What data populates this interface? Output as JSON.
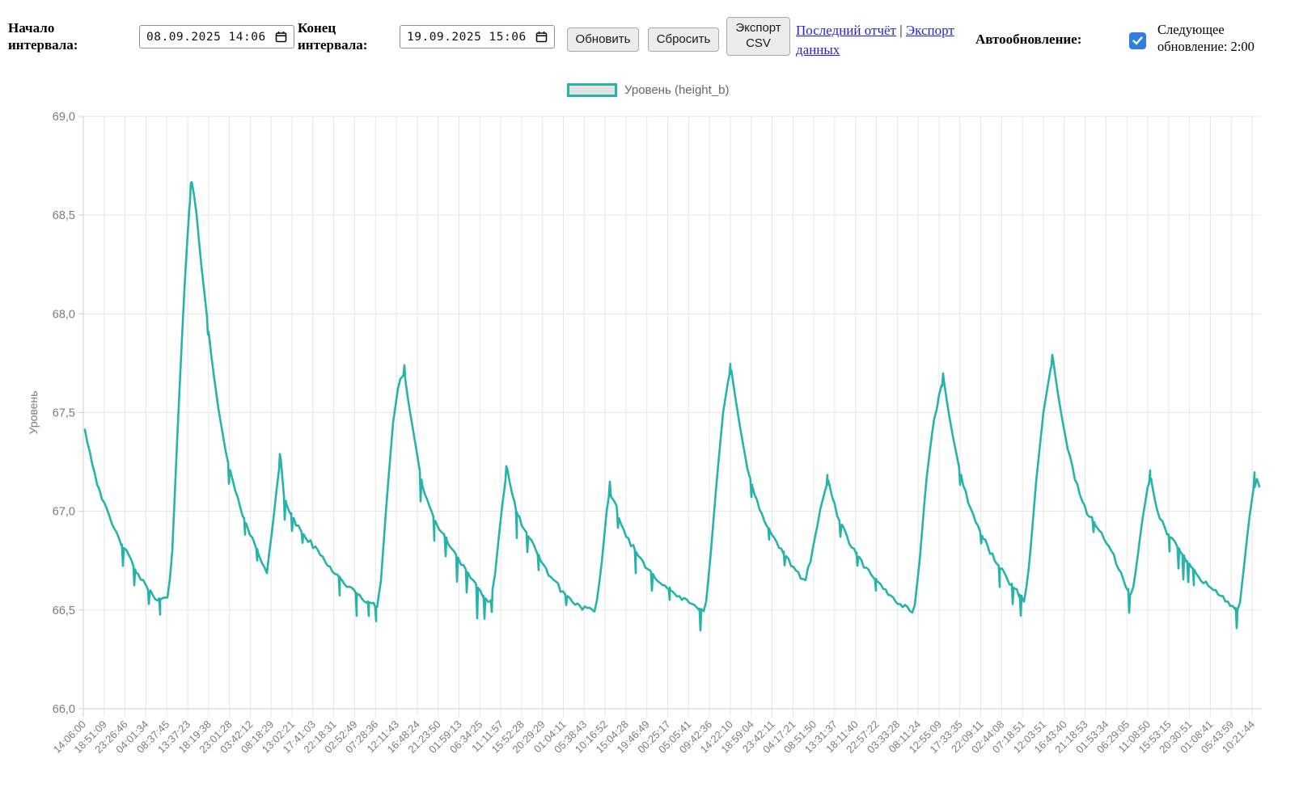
{
  "toolbar": {
    "start_label": "Начало интервала:",
    "start_value": "08.09.2025 14:06",
    "end_label": "Конец интервала:",
    "end_value": "19.09.2025 15:06",
    "refresh_button": "Обновить",
    "reset_button": "Сбросить",
    "export_csv_button": "Экспорт CSV",
    "last_report_link": "Последний отчёт",
    "links_separator": "|",
    "export_data_link": "Экспорт данных",
    "autorefresh_label": "Автообновление:",
    "autorefresh_checked": true,
    "next_update_text": "Следующее обновление: 2:00"
  },
  "colors": {
    "series": "#26b3aa",
    "grid": "#e6e6e6",
    "axis": "#cfcfcf",
    "tick_text": "#7b7b7b",
    "legend_text": "#666666",
    "link": "#2525cf",
    "checkbox": "#2e7fe0"
  },
  "chart_data": {
    "type": "line",
    "legend_label": "Уровень (height_b)",
    "ylabel": "Уровень",
    "ylim": [
      66.0,
      69.0
    ],
    "ytick_step": 0.5,
    "grid": true,
    "legend_position": "top",
    "y_ticks": [
      {
        "value": 69.0,
        "label": "69,0"
      },
      {
        "value": 68.5,
        "label": "68,5"
      },
      {
        "value": 68.0,
        "label": "68,0"
      },
      {
        "value": 67.5,
        "label": "67,5"
      },
      {
        "value": 67.0,
        "label": "67,0"
      },
      {
        "value": 66.5,
        "label": "66,5"
      },
      {
        "value": 66.0,
        "label": "66,0"
      }
    ],
    "x_tick_labels": [
      "14:06:00",
      "18:51:09",
      "23:26:46",
      "04:01:34",
      "08:37:45",
      "13:37:23",
      "18:19:38",
      "23:01:28",
      "03:42:12",
      "08:18:29",
      "13:02:21",
      "17:41:03",
      "22:18:31",
      "02:52:49",
      "07:28:36",
      "12:11:43",
      "16:48:24",
      "21:23:50",
      "01:59:13",
      "06:34:25",
      "11:11:57",
      "15:52:28",
      "20:29:29",
      "01:04:11",
      "05:38:43",
      "10:16:52",
      "15:04:28",
      "19:46:49",
      "00:25:17",
      "05:05:41",
      "09:42:36",
      "14:22:10",
      "18:59:04",
      "23:42:11",
      "04:17:21",
      "08:51:50",
      "13:31:37",
      "18:11:40",
      "22:57:22",
      "03:33:28",
      "08:11:24",
      "12:55:09",
      "17:33:35",
      "22:09:11",
      "02:44:08",
      "07:18:51",
      "12:03:51",
      "16:43:40",
      "21:18:53",
      "01:53:34",
      "06:29:05",
      "11:08:50",
      "15:53:15",
      "20:30:51",
      "01:08:41",
      "05:43:59",
      "10:21:44"
    ],
    "series": [
      {
        "name": "Уровень (height_b)",
        "color": "#26b3aa",
        "envelope": [
          [
            105,
            67.42
          ],
          [
            112,
            67.28
          ],
          [
            120,
            67.15
          ],
          [
            130,
            67.02
          ],
          [
            142,
            66.9
          ],
          [
            155,
            66.8
          ],
          [
            168,
            66.7
          ],
          [
            180,
            66.62
          ],
          [
            190,
            66.57
          ],
          [
            202,
            66.55
          ],
          [
            208,
            66.56
          ],
          [
            213,
            66.8
          ],
          [
            220,
            67.45
          ],
          [
            227,
            68.05
          ],
          [
            233,
            68.48
          ],
          [
            237,
            68.67
          ],
          [
            242,
            68.55
          ],
          [
            248,
            68.28
          ],
          [
            255,
            68.02
          ],
          [
            262,
            67.76
          ],
          [
            270,
            67.52
          ],
          [
            280,
            67.28
          ],
          [
            292,
            67.08
          ],
          [
            304,
            66.94
          ],
          [
            314,
            66.84
          ],
          [
            322,
            66.76
          ],
          [
            330,
            66.7
          ],
          [
            337,
            66.92
          ],
          [
            343,
            67.15
          ],
          [
            347,
            67.27
          ],
          [
            351,
            67.08
          ],
          [
            356,
            67.02
          ],
          [
            362,
            66.96
          ],
          [
            372,
            66.9
          ],
          [
            384,
            66.84
          ],
          [
            398,
            66.77
          ],
          [
            414,
            66.69
          ],
          [
            430,
            66.62
          ],
          [
            444,
            66.57
          ],
          [
            456,
            66.54
          ],
          [
            466,
            66.51
          ],
          [
            471,
            66.65
          ],
          [
            478,
            67.05
          ],
          [
            486,
            67.45
          ],
          [
            493,
            67.65
          ],
          [
            500,
            67.7
          ],
          [
            505,
            67.55
          ],
          [
            512,
            67.38
          ],
          [
            520,
            67.18
          ],
          [
            530,
            67.02
          ],
          [
            542,
            66.92
          ],
          [
            556,
            66.83
          ],
          [
            572,
            66.73
          ],
          [
            588,
            66.63
          ],
          [
            598,
            66.57
          ],
          [
            606,
            66.53
          ],
          [
            612,
            66.68
          ],
          [
            620,
            67.0
          ],
          [
            627,
            67.22
          ],
          [
            633,
            67.08
          ],
          [
            640,
            66.98
          ],
          [
            650,
            66.9
          ],
          [
            662,
            66.8
          ],
          [
            676,
            66.7
          ],
          [
            692,
            66.61
          ],
          [
            708,
            66.54
          ],
          [
            722,
            66.51
          ],
          [
            736,
            66.49
          ],
          [
            743,
            66.7
          ],
          [
            750,
            67.0
          ],
          [
            754,
            67.11
          ],
          [
            757,
            67.03
          ],
          [
            760,
            67.06
          ],
          [
            766,
            66.95
          ],
          [
            775,
            66.87
          ],
          [
            787,
            66.79
          ],
          [
            801,
            66.71
          ],
          [
            817,
            66.64
          ],
          [
            834,
            66.58
          ],
          [
            850,
            66.54
          ],
          [
            862,
            66.51
          ],
          [
            872,
            66.5
          ],
          [
            878,
            66.75
          ],
          [
            886,
            67.15
          ],
          [
            894,
            67.5
          ],
          [
            901,
            67.68
          ],
          [
            904,
            67.72
          ],
          [
            909,
            67.58
          ],
          [
            916,
            67.4
          ],
          [
            924,
            67.22
          ],
          [
            933,
            67.08
          ],
          [
            944,
            66.96
          ],
          [
            957,
            66.86
          ],
          [
            971,
            66.77
          ],
          [
            984,
            66.7
          ],
          [
            995,
            66.65
          ],
          [
            1002,
            66.75
          ],
          [
            1010,
            66.92
          ],
          [
            1018,
            67.07
          ],
          [
            1024,
            67.16
          ],
          [
            1030,
            67.05
          ],
          [
            1038,
            66.95
          ],
          [
            1048,
            66.86
          ],
          [
            1062,
            66.76
          ],
          [
            1078,
            66.67
          ],
          [
            1094,
            66.6
          ],
          [
            1110,
            66.54
          ],
          [
            1122,
            66.51
          ],
          [
            1130,
            66.49
          ],
          [
            1137,
            66.75
          ],
          [
            1145,
            67.15
          ],
          [
            1154,
            67.45
          ],
          [
            1162,
            67.6
          ],
          [
            1167,
            67.66
          ],
          [
            1172,
            67.52
          ],
          [
            1178,
            67.38
          ],
          [
            1186,
            67.22
          ],
          [
            1196,
            67.06
          ],
          [
            1208,
            66.93
          ],
          [
            1222,
            66.81
          ],
          [
            1237,
            66.71
          ],
          [
            1250,
            66.63
          ],
          [
            1260,
            66.58
          ],
          [
            1267,
            66.55
          ],
          [
            1273,
            66.75
          ],
          [
            1281,
            67.15
          ],
          [
            1290,
            67.5
          ],
          [
            1298,
            67.7
          ],
          [
            1302,
            67.77
          ],
          [
            1307,
            67.62
          ],
          [
            1313,
            67.47
          ],
          [
            1321,
            67.3
          ],
          [
            1331,
            67.14
          ],
          [
            1343,
            67.0
          ],
          [
            1356,
            66.92
          ],
          [
            1368,
            66.85
          ],
          [
            1380,
            66.74
          ],
          [
            1391,
            66.63
          ],
          [
            1399,
            66.56
          ],
          [
            1405,
            66.72
          ],
          [
            1412,
            66.95
          ],
          [
            1419,
            67.12
          ],
          [
            1423,
            67.17
          ],
          [
            1428,
            67.04
          ],
          [
            1434,
            66.97
          ],
          [
            1442,
            66.9
          ],
          [
            1452,
            66.84
          ],
          [
            1462,
            66.78
          ],
          [
            1473,
            66.72
          ],
          [
            1485,
            66.66
          ],
          [
            1498,
            66.61
          ],
          [
            1512,
            66.56
          ],
          [
            1524,
            66.52
          ],
          [
            1532,
            66.5
          ],
          [
            1538,
            66.72
          ],
          [
            1544,
            66.95
          ],
          [
            1550,
            67.12
          ],
          [
            1554,
            67.15
          ],
          [
            1558,
            67.12
          ]
        ],
        "spikes": [
          [
            152,
            -0.1
          ],
          [
            166,
            -0.09
          ],
          [
            184,
            -0.07
          ],
          [
            198,
            -0.08
          ],
          [
            257,
            -0.05
          ],
          [
            283,
            -0.09
          ],
          [
            303,
            -0.07
          ],
          [
            318,
            -0.05
          ],
          [
            352,
            -0.11
          ],
          [
            361,
            -0.07
          ],
          [
            374,
            -0.05
          ],
          [
            420,
            -0.09
          ],
          [
            441,
            -0.11
          ],
          [
            456,
            -0.07
          ],
          [
            465,
            -0.07
          ],
          [
            520,
            -0.13
          ],
          [
            537,
            -0.11
          ],
          [
            551,
            -0.09
          ],
          [
            565,
            -0.13
          ],
          [
            577,
            -0.11
          ],
          [
            590,
            -0.16
          ],
          [
            599,
            -0.11
          ],
          [
            608,
            -0.09
          ],
          [
            639,
            -0.13
          ],
          [
            652,
            -0.09
          ],
          [
            666,
            -0.07
          ],
          [
            700,
            -0.05
          ],
          [
            764,
            -0.07
          ],
          [
            786,
            -0.11
          ],
          [
            806,
            -0.09
          ],
          [
            828,
            -0.05
          ],
          [
            866,
            -0.11
          ],
          [
            929,
            -0.07
          ],
          [
            951,
            -0.05
          ],
          [
            970,
            -0.05
          ],
          [
            1039,
            -0.07
          ],
          [
            1060,
            -0.05
          ],
          [
            1083,
            -0.05
          ],
          [
            1187,
            -0.07
          ],
          [
            1213,
            -0.05
          ],
          [
            1236,
            -0.1
          ],
          [
            1252,
            -0.09
          ],
          [
            1262,
            -0.1
          ],
          [
            1352,
            -0.05
          ],
          [
            1396,
            -0.1
          ],
          [
            1446,
            -0.08
          ],
          [
            1457,
            -0.1
          ],
          [
            1463,
            -0.12
          ],
          [
            1469,
            -0.1
          ],
          [
            1476,
            -0.08
          ],
          [
            1529,
            -0.1
          ],
          [
            236,
            0.04
          ],
          [
            346,
            0.05
          ],
          [
            500,
            0.04
          ],
          [
            626,
            0.04
          ],
          [
            754,
            0.04
          ],
          [
            903,
            0.04
          ],
          [
            1023,
            0.04
          ],
          [
            1166,
            0.05
          ],
          [
            1301,
            0.04
          ],
          [
            1422,
            0.05
          ],
          [
            1551,
            0.07
          ]
        ]
      }
    ]
  }
}
